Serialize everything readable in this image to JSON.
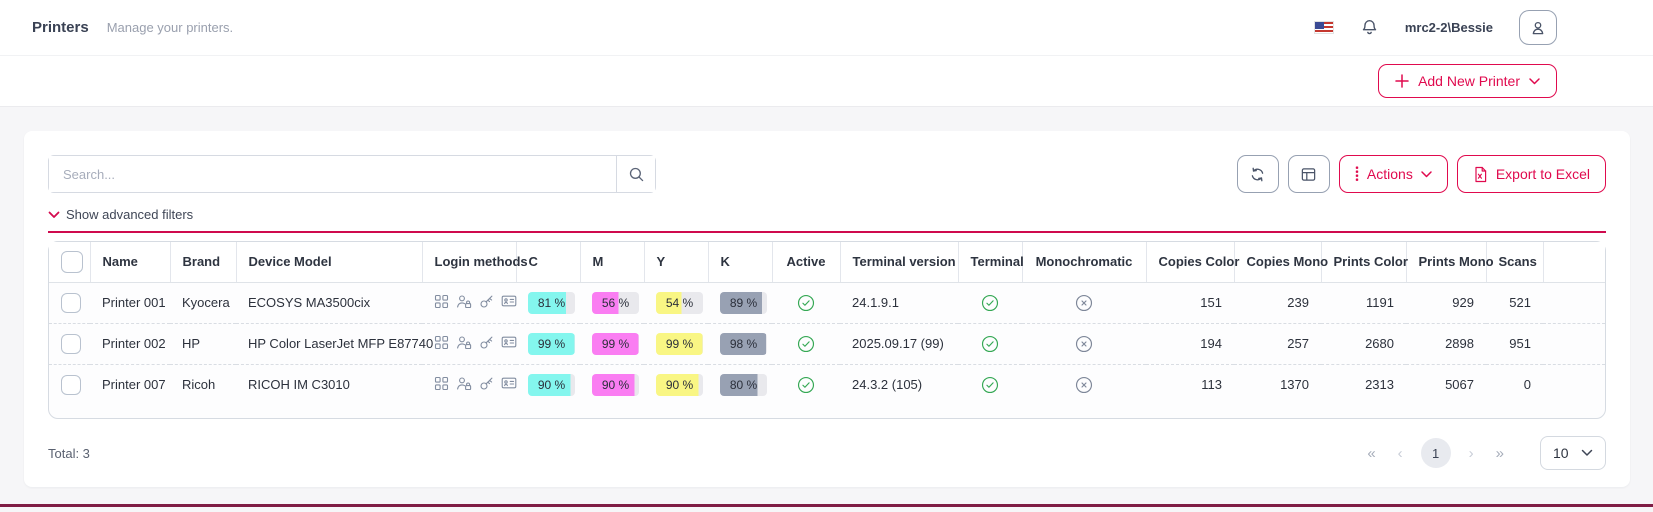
{
  "colors": {
    "accent": "#e00a4e",
    "cyan": "#84f6ee",
    "magenta": "#fa7df2",
    "yellow": "#f9f684",
    "black_toner": "#98a1b3",
    "badge_rest": "#e9e9ed",
    "status_green": "#35a854",
    "status_gray": "#7e8799"
  },
  "header": {
    "title": "Printers",
    "subtitle": "Manage your printers.",
    "user": "mrc2-2\\Bessie"
  },
  "actionbar": {
    "add_button": "Add New Printer"
  },
  "controls": {
    "search_placeholder": "Search...",
    "actions": "Actions",
    "export": "Export to Excel",
    "filters": "Show advanced filters"
  },
  "table": {
    "columns": [
      {
        "key": "select",
        "label": "",
        "width": 41,
        "align": "left",
        "type": "checkbox"
      },
      {
        "key": "name",
        "label": "Name",
        "width": 80,
        "align": "left",
        "type": "text"
      },
      {
        "key": "brand",
        "label": "Brand",
        "width": 66,
        "align": "left",
        "type": "text"
      },
      {
        "key": "model",
        "label": "Device Model",
        "width": 186,
        "align": "left",
        "type": "text"
      },
      {
        "key": "login",
        "label": "Login methods",
        "width": 94,
        "align": "left",
        "type": "icons"
      },
      {
        "key": "c",
        "label": "C",
        "width": 64,
        "align": "left",
        "type": "toner",
        "color": "cyan"
      },
      {
        "key": "m",
        "label": "M",
        "width": 64,
        "align": "left",
        "type": "toner",
        "color": "magenta"
      },
      {
        "key": "y",
        "label": "Y",
        "width": 64,
        "align": "left",
        "type": "toner",
        "color": "yellow"
      },
      {
        "key": "k",
        "label": "K",
        "width": 64,
        "align": "left",
        "type": "toner",
        "color": "black_toner"
      },
      {
        "key": "active",
        "label": "Active",
        "width": 68,
        "align": "center",
        "type": "bool"
      },
      {
        "key": "terminal_version",
        "label": "Terminal version",
        "width": 118,
        "align": "left",
        "type": "text"
      },
      {
        "key": "terminal",
        "label": "Terminal",
        "width": 64,
        "align": "center",
        "type": "bool"
      },
      {
        "key": "monochromatic",
        "label": "Monochromatic",
        "width": 124,
        "align": "center",
        "type": "bool"
      },
      {
        "key": "copies_color",
        "label": "Copies Color",
        "width": 88,
        "align": "right",
        "type": "text"
      },
      {
        "key": "copies_mono",
        "label": "Copies Mono",
        "width": 87,
        "align": "right",
        "type": "text"
      },
      {
        "key": "prints_color",
        "label": "Prints Color",
        "width": 85,
        "align": "right",
        "type": "text"
      },
      {
        "key": "prints_mono",
        "label": "Prints Mono",
        "width": 80,
        "align": "right",
        "type": "text"
      },
      {
        "key": "scans",
        "label": "Scans",
        "width": 57,
        "align": "right",
        "type": "text"
      }
    ],
    "login_icon_names": [
      "pin-grid-icon",
      "user-lock-icon",
      "key-icon",
      "id-card-icon"
    ],
    "rows": [
      {
        "name": "Printer 001",
        "brand": "Kyocera",
        "model": "ECOSYS MA3500cix",
        "c": {
          "text": "81 %",
          "pct": 81
        },
        "m": {
          "text": "56 %",
          "pct": 56
        },
        "y": {
          "text": "54 %",
          "pct": 54
        },
        "k": {
          "text": "89 %",
          "pct": 89
        },
        "active": true,
        "terminal_version": "24.1.9.1",
        "terminal": true,
        "monochromatic": false,
        "copies_color": "151",
        "copies_mono": "239",
        "prints_color": "1191",
        "prints_mono": "929",
        "scans": "521"
      },
      {
        "name": "Printer 002",
        "brand": "HP",
        "model": "HP Color LaserJet MFP E87740",
        "c": {
          "text": "99 %",
          "pct": 99
        },
        "m": {
          "text": "99 %",
          "pct": 99
        },
        "y": {
          "text": "99 %",
          "pct": 99
        },
        "k": {
          "text": "98 %",
          "pct": 98
        },
        "active": true,
        "terminal_version": "2025.09.17 (99)",
        "terminal": true,
        "monochromatic": false,
        "copies_color": "194",
        "copies_mono": "257",
        "prints_color": "2680",
        "prints_mono": "2898",
        "scans": "951"
      },
      {
        "name": "Printer 007",
        "brand": "Ricoh",
        "model": "RICOH IM C3010",
        "c": {
          "text": "90 %",
          "pct": 90
        },
        "m": {
          "text": "90 %",
          "pct": 90
        },
        "y": {
          "text": "90 %",
          "pct": 90
        },
        "k": {
          "text": "80 %",
          "pct": 80
        },
        "active": true,
        "terminal_version": "24.3.2 (105)",
        "terminal": true,
        "monochromatic": false,
        "copies_color": "113",
        "copies_mono": "1370",
        "prints_color": "2313",
        "prints_mono": "5067",
        "scans": "0"
      }
    ]
  },
  "footer": {
    "total_label": "Total: 3",
    "pagination": {
      "first": "«",
      "prev": "‹",
      "current": "1",
      "next": "›",
      "last": "»"
    },
    "page_size": "10"
  }
}
